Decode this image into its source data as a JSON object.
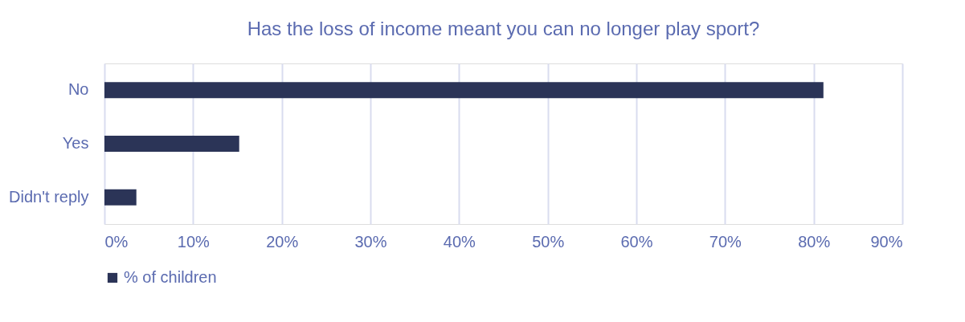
{
  "chart_data": {
    "type": "bar",
    "orientation": "horizontal",
    "title": "Has the loss of income meant you can no longer play sport?",
    "categories": [
      "No",
      "Yes",
      "Didn't reply"
    ],
    "series": [
      {
        "name": "% of children",
        "color": "#2b3457",
        "values": [
          81.1,
          15.2,
          3.6
        ]
      }
    ],
    "xlim": [
      0,
      90
    ],
    "xticks": [
      {
        "value": 0,
        "label": "0%"
      },
      {
        "value": 10,
        "label": "10%"
      },
      {
        "value": 20,
        "label": "20%"
      },
      {
        "value": 30,
        "label": "30%"
      },
      {
        "value": 40,
        "label": "40%"
      },
      {
        "value": 50,
        "label": "50%"
      },
      {
        "value": 60,
        "label": "60%"
      },
      {
        "value": 70,
        "label": "70%"
      },
      {
        "value": 80,
        "label": "80%"
      },
      {
        "value": 90,
        "label": "90%"
      }
    ],
    "grid": "x",
    "legend": "bottom"
  }
}
